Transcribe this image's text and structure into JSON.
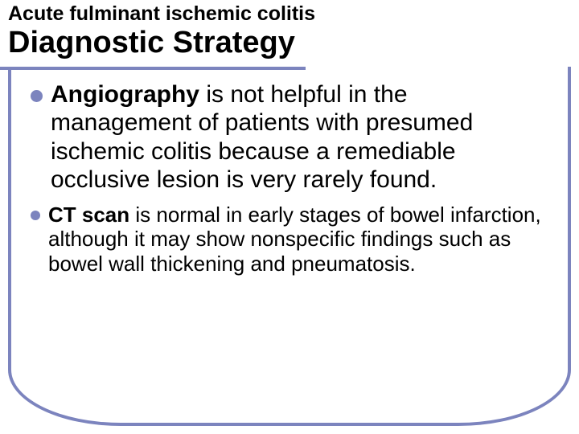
{
  "header": {
    "subtitle": "Acute fulminant ischemic colitis",
    "title": "Diagnostic Strategy"
  },
  "bullets": {
    "item1": {
      "lead": "Angiography",
      "rest": " is not helpful in the management of patients with presumed ischemic colitis because a remediable occlusive lesion is very rarely found."
    },
    "item2": {
      "lead": "CT scan",
      "rest": " is normal in early stages of bowel infarction, although it may show nonspecific findings such as bowel wall thickening and pneumatosis."
    }
  },
  "colors": {
    "accent": "#7c84be",
    "text": "#000000",
    "background": "#ffffff"
  }
}
